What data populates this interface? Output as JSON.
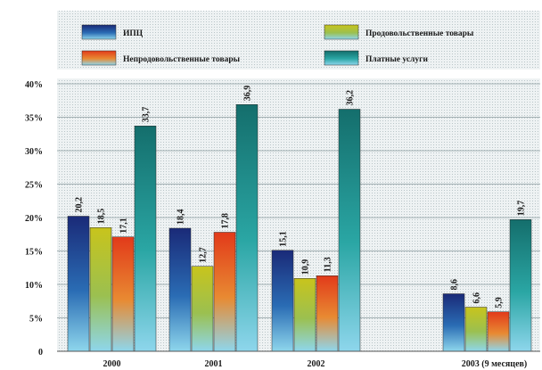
{
  "chart_data": {
    "type": "bar",
    "categories": [
      "2000",
      "2001",
      "2002",
      "2003 (9 месяцев)"
    ],
    "series": [
      {
        "name": "ИПЦ",
        "values": [
          20.2,
          18.4,
          15.1,
          8.6
        ],
        "labels": [
          "20,2",
          "18,4",
          "15,1",
          "8,6"
        ]
      },
      {
        "name": "Непродовольственные товары",
        "values": [
          17.1,
          17.8,
          11.3,
          5.9
        ],
        "labels": [
          "17,1",
          "17,8",
          "11,3",
          "5,9"
        ]
      },
      {
        "name": "Продовольственные товары",
        "values": [
          18.5,
          12.7,
          10.9,
          6.6
        ],
        "labels": [
          "18,5",
          "12,7",
          "10,9",
          "6,6"
        ]
      },
      {
        "name": "Платные услуги",
        "values": [
          33.7,
          36.9,
          36.2,
          19.7
        ],
        "labels": [
          "33,7",
          "36,9",
          "36,2",
          "19,7"
        ]
      }
    ],
    "bar_order": [
      "ИПЦ",
      "Продовольственные товары",
      "Непродовольственные товары",
      "Платные услуги"
    ],
    "legend_order": [
      "ИПЦ",
      "Продовольственные товары",
      "Непродовольственные товары",
      "Платные услуги"
    ],
    "ylim": [
      0,
      40
    ],
    "yticks": [
      0,
      5,
      10,
      15,
      20,
      25,
      30,
      35,
      40
    ],
    "ytick_labels": [
      "0",
      "5%",
      "10%",
      "15%",
      "20%",
      "25%",
      "30%",
      "35%",
      "40%"
    ],
    "grid": true,
    "legend_position": "top",
    "colors": {
      "ИПЦ": "#1e3c8c",
      "Продовольственные товары": "#c8c81e",
      "Непродовольственные товары": "#e8501a",
      "Платные услуги": "#18807c"
    }
  }
}
